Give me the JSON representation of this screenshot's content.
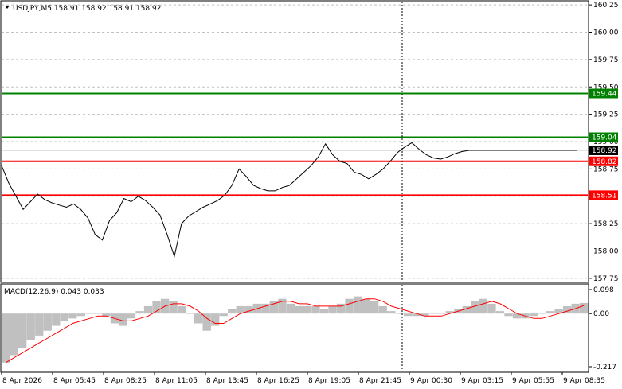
{
  "chart_data": [
    {
      "type": "line",
      "title": "USDJPY,M5  158.91 158.92 158.91 158.92",
      "symbol": "USDJPY,M5",
      "ohlc": {
        "open": "158.91",
        "high": "158.92",
        "low": "158.91",
        "close": "158.92"
      },
      "ylim": [
        157.72,
        160.28
      ],
      "y_ticks": [
        "160.25",
        "160.00",
        "159.75",
        "159.50",
        "159.25",
        "159.00",
        "158.75",
        "158.50",
        "158.25",
        "158.00",
        "157.75"
      ],
      "x_ticks": [
        "8 Apr 2026",
        "8 Apr 05:45",
        "8 Apr 08:25",
        "8 Apr 11:05",
        "8 Apr 13:45",
        "8 Apr 16:25",
        "8 Apr 19:05",
        "8 Apr 21:45",
        "9 Apr 00:30",
        "9 Apr 03:15",
        "9 Apr 05:55",
        "9 Apr 08:35"
      ],
      "levels": [
        {
          "label": "159.44",
          "value": 159.44,
          "color": "#008000"
        },
        {
          "label": "159.04",
          "value": 159.04,
          "color": "#008000"
        },
        {
          "label": "158.82",
          "value": 158.82,
          "color": "#ff0000"
        },
        {
          "label": "158.51",
          "value": 158.51,
          "color": "#ff0000"
        }
      ],
      "current_price": {
        "label": "158.92",
        "value": 158.92
      },
      "series": [
        {
          "x": [
            0,
            1,
            2,
            3,
            4,
            5,
            6,
            7,
            8,
            9,
            10,
            11,
            12,
            13,
            14,
            15,
            16,
            17,
            18,
            19,
            20,
            21,
            22,
            23,
            24,
            25,
            26,
            27,
            28,
            29,
            30,
            31,
            32,
            33,
            34,
            35,
            36,
            37,
            38,
            39,
            40,
            41,
            42,
            43,
            44,
            45,
            46,
            47,
            48,
            49,
            50,
            51,
            52,
            53,
            54,
            55,
            56,
            57,
            58,
            59,
            60,
            61,
            62,
            63,
            64,
            65,
            66,
            67,
            68,
            69,
            70,
            71,
            72,
            73,
            74,
            75,
            76,
            77,
            78,
            79,
            80
          ],
          "values": [
            158.78,
            158.62,
            158.5,
            158.38,
            158.45,
            158.52,
            158.47,
            158.44,
            158.42,
            158.4,
            158.43,
            158.38,
            158.3,
            158.15,
            158.1,
            158.28,
            158.35,
            158.48,
            158.45,
            158.5,
            158.46,
            158.4,
            158.33,
            158.15,
            157.95,
            158.25,
            158.32,
            158.36,
            158.4,
            158.43,
            158.46,
            158.51,
            158.6,
            158.75,
            158.68,
            158.6,
            158.57,
            158.55,
            158.55,
            158.58,
            158.6,
            158.66,
            158.72,
            158.78,
            158.86,
            158.98,
            158.88,
            158.82,
            158.8,
            158.72,
            158.7,
            158.66,
            158.7,
            158.75,
            158.82,
            158.9,
            158.95,
            158.99,
            158.93,
            158.88,
            158.85,
            158.84,
            158.86,
            158.89,
            158.91,
            158.92,
            158.92,
            158.92,
            158.92,
            158.92,
            158.92,
            158.92,
            158.92,
            158.92,
            158.92,
            158.92,
            158.92,
            158.92,
            158.92,
            158.92,
            158.92
          ]
        }
      ],
      "grid": true,
      "crosshair_x": 505
    },
    {
      "type": "bar",
      "title": "MACD(12,26,9) 0.043 0.033",
      "ylim": [
        -0.217,
        0.098
      ],
      "y_ticks": [
        "0.098",
        "0.00",
        "-0.217"
      ],
      "series": [
        {
          "name": "MACD",
          "values": [
            -0.2,
            -0.17,
            -0.14,
            -0.11,
            -0.09,
            -0.07,
            -0.05,
            -0.03,
            -0.02,
            -0.01,
            0.0,
            0.0,
            -0.01,
            -0.04,
            -0.05,
            -0.02,
            0.01,
            0.03,
            0.05,
            0.06,
            0.05,
            0.03,
            0.0,
            -0.04,
            -0.07,
            -0.05,
            -0.01,
            0.02,
            0.03,
            0.03,
            0.04,
            0.04,
            0.05,
            0.06,
            0.04,
            0.03,
            0.03,
            0.03,
            0.02,
            0.03,
            0.04,
            0.06,
            0.07,
            0.06,
            0.05,
            0.03,
            0.01,
            0.0,
            -0.01,
            -0.01,
            -0.01,
            0.0,
            0.0,
            0.01,
            0.02,
            0.03,
            0.05,
            0.06,
            0.04,
            0.01,
            -0.01,
            -0.02,
            -0.02,
            -0.01,
            0.0,
            0.01,
            0.02,
            0.03,
            0.04,
            0.043
          ]
        },
        {
          "name": "Signal",
          "values": [
            -0.2,
            -0.18,
            -0.16,
            -0.14,
            -0.12,
            -0.1,
            -0.08,
            -0.06,
            -0.04,
            -0.03,
            -0.02,
            -0.01,
            -0.01,
            -0.02,
            -0.03,
            -0.03,
            -0.02,
            -0.01,
            0.01,
            0.03,
            0.04,
            0.04,
            0.03,
            0.01,
            -0.02,
            -0.04,
            -0.04,
            -0.02,
            0.0,
            0.01,
            0.02,
            0.03,
            0.04,
            0.05,
            0.05,
            0.04,
            0.04,
            0.03,
            0.03,
            0.03,
            0.03,
            0.04,
            0.05,
            0.06,
            0.06,
            0.05,
            0.03,
            0.02,
            0.01,
            0.0,
            -0.01,
            -0.01,
            -0.01,
            0.0,
            0.01,
            0.02,
            0.03,
            0.04,
            0.05,
            0.04,
            0.02,
            0.0,
            -0.01,
            -0.02,
            -0.02,
            -0.01,
            0.0,
            0.01,
            0.02,
            0.033
          ]
        }
      ]
    }
  ]
}
